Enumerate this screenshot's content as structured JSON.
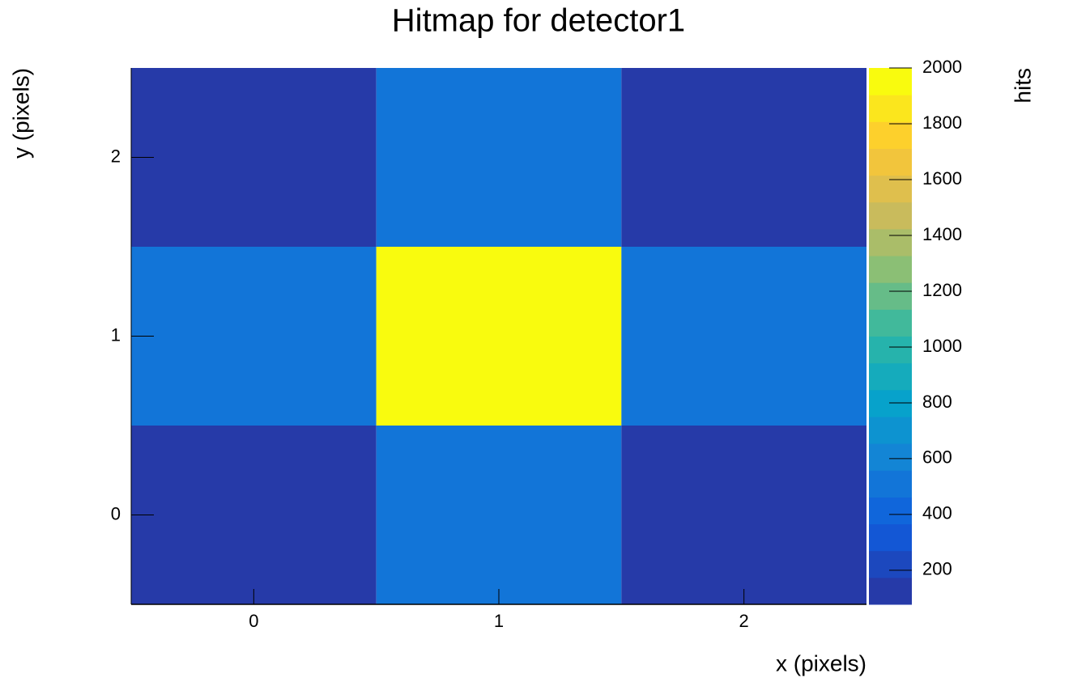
{
  "chart_data": {
    "type": "heatmap",
    "title": "Hitmap for detector1",
    "x_label": "x (pixels)",
    "y_label": "y (pixels)",
    "z_label": "hits",
    "x": [
      0,
      1,
      2
    ],
    "y": [
      0,
      1,
      2
    ],
    "z": [
      [
        78,
        520,
        78
      ],
      [
        520,
        2000,
        520
      ],
      [
        78,
        520,
        78
      ]
    ],
    "xlim": [
      -0.5,
      2.5
    ],
    "ylim": [
      -0.5,
      2.5
    ],
    "xticks": [
      0,
      1,
      2
    ],
    "yticks": [
      0,
      1,
      2
    ],
    "zlim": [
      78,
      2000
    ],
    "zticks": [
      200,
      400,
      600,
      800,
      1000,
      1200,
      1400,
      1600,
      1800,
      2000
    ],
    "color_levels": 20,
    "colorscale": [
      "#263aa8",
      "#0f5cdd",
      "#1481d6",
      "#06a4ca",
      "#2eb7a4",
      "#87bf77",
      "#d1bb59",
      "#fec832",
      "#f9fb0e"
    ]
  }
}
